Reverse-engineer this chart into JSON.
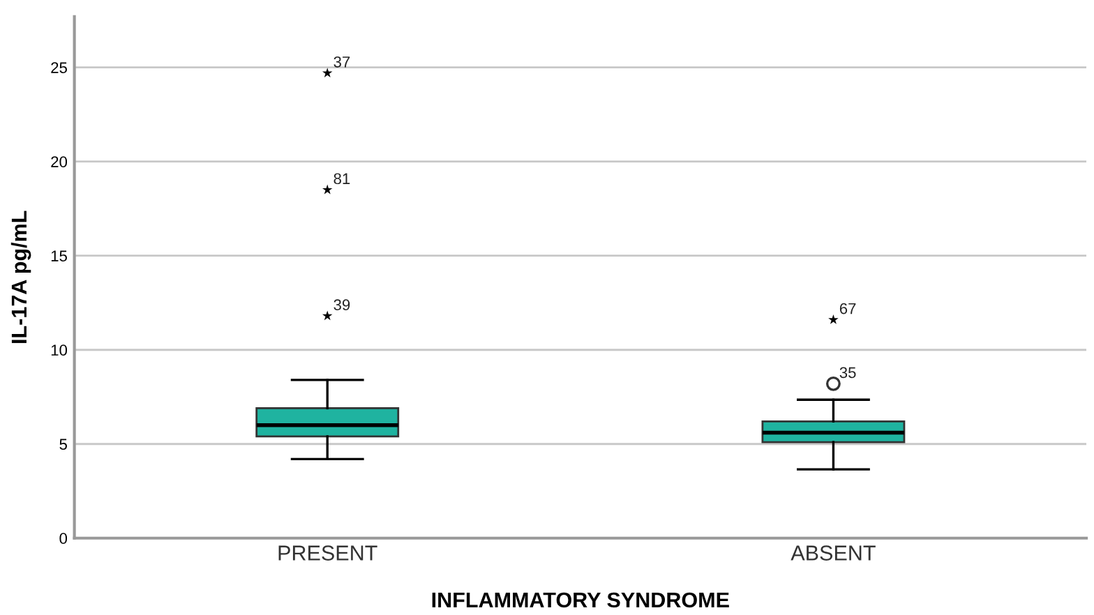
{
  "chart_data": {
    "type": "box",
    "xlabel": "INFLAMMATORY SYNDROME",
    "ylabel": "IL-17A pg/mL",
    "categories": [
      "PRESENT",
      "ABSENT"
    ],
    "series": [
      {
        "color": "#1fb3a0",
        "boxes": [
          {
            "low": 4.2,
            "q1": 5.4,
            "median": 6.0,
            "q3": 6.9,
            "high": 8.4
          },
          {
            "low": 3.65,
            "q1": 5.1,
            "median": 5.6,
            "q3": 6.2,
            "high": 7.35
          }
        ]
      },
      {
        "type": "scatter",
        "marker": "circle",
        "color": "#333333",
        "x": [
          "ABSENT"
        ],
        "values": [
          8.2
        ]
      },
      {
        "type": "scatter",
        "marker": "star",
        "color": "#000000",
        "x": [
          "PRESENT",
          "PRESENT",
          "PRESENT",
          "ABSENT"
        ],
        "values": [
          24.7,
          18.5,
          11.8,
          11.6
        ]
      }
    ],
    "annotations": [
      {
        "text": "37",
        "x": "PRESENT",
        "y": 24.7
      },
      {
        "text": "81",
        "x": "PRESENT",
        "y": 18.5
      },
      {
        "text": "39",
        "x": "PRESENT",
        "y": 11.8
      },
      {
        "text": "67",
        "x": "ABSENT",
        "y": 11.6
      },
      {
        "text": "35",
        "x": "ABSENT",
        "y": 8.2
      }
    ],
    "ylim": [
      0,
      27.7
    ],
    "yticks": [
      0,
      5,
      10,
      15,
      20,
      25
    ],
    "grid": "y",
    "legend": false
  }
}
